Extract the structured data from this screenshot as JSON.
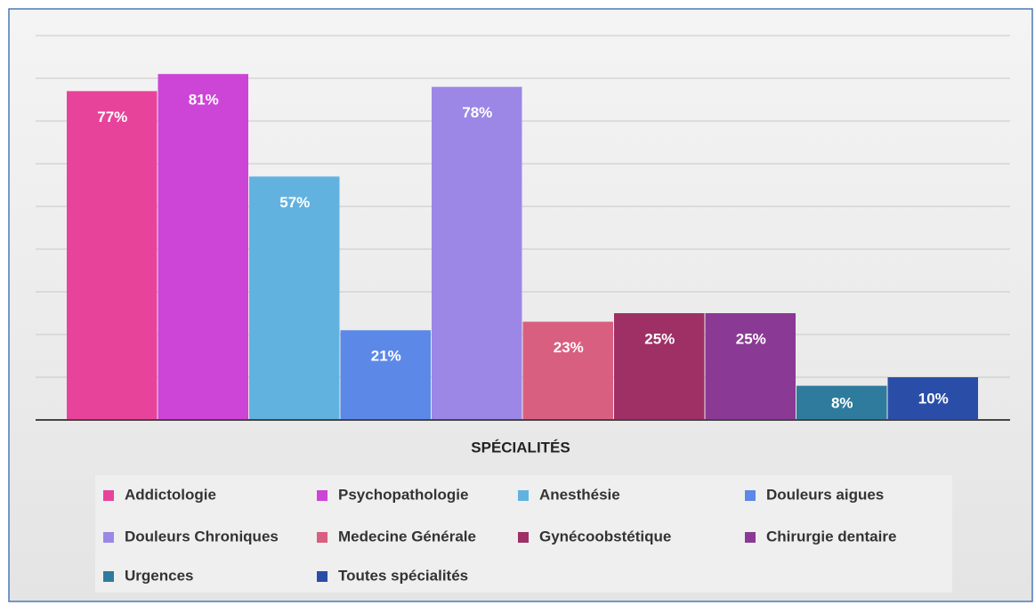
{
  "chart_data": {
    "type": "bar",
    "x_label": "SPÉCIALITÉS",
    "ylim": [
      0,
      90
    ],
    "yticks": [
      0,
      10,
      20,
      30,
      40,
      50,
      60,
      70,
      80,
      90
    ],
    "grid": true,
    "series": [
      {
        "name": "Addictologie",
        "color": "#e8439a",
        "values": [
          77
        ],
        "value_labels": [
          "77%"
        ]
      },
      {
        "name": "Psychopathologie",
        "color": "#cc45d6",
        "values": [
          81
        ],
        "value_labels": [
          "81%"
        ]
      },
      {
        "name": "Anesthésie",
        "color": "#62b2e0",
        "values": [
          57
        ],
        "value_labels": [
          "57%"
        ]
      },
      {
        "name": "Douleurs aigues",
        "color": "#5c88e8",
        "values": [
          21
        ],
        "value_labels": [
          "21%"
        ]
      },
      {
        "name": "Douleurs Chroniques",
        "color": "#9c87e6",
        "values": [
          78
        ],
        "value_labels": [
          "78%"
        ]
      },
      {
        "name": "Medecine Générale",
        "color": "#d95f80",
        "values": [
          23
        ],
        "value_labels": [
          "23%"
        ]
      },
      {
        "name": "Gynécoobstétique",
        "color": "#9e3065",
        "values": [
          25
        ],
        "value_labels": [
          "25%"
        ]
      },
      {
        "name": "Chirurgie dentaire",
        "color": "#8a3a94",
        "values": [
          25
        ],
        "value_labels": [
          "25%"
        ]
      },
      {
        "name": "Urgences",
        "color": "#2e7b9e",
        "values": [
          8
        ],
        "value_labels": [
          "8%"
        ]
      },
      {
        "name": "Toutes spécialités",
        "color": "#2a4ea8",
        "values": [
          10
        ],
        "value_labels": [
          "10%"
        ]
      }
    ]
  }
}
